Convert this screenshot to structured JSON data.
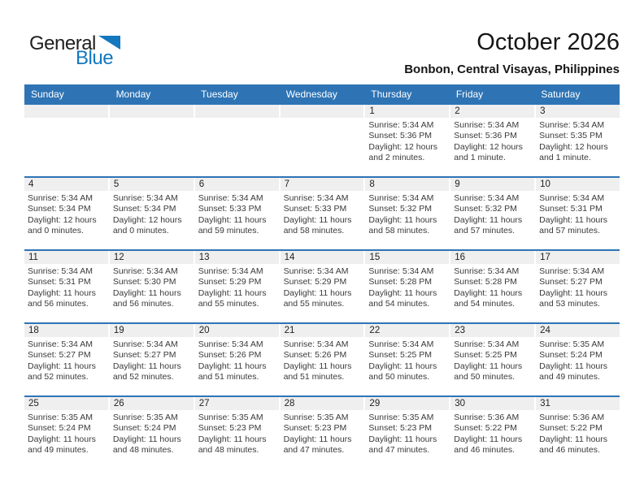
{
  "logo": {
    "part1": "General",
    "part2": "Blue"
  },
  "title": "October 2026",
  "subtitle": "Bonbon, Central Visayas, Philippines",
  "weekdays": [
    "Sunday",
    "Monday",
    "Tuesday",
    "Wednesday",
    "Thursday",
    "Friday",
    "Saturday"
  ],
  "colors": {
    "header_blue": "#2e74b5",
    "row_line_blue": "#2e74b5",
    "day_strip_gray": "#efefef",
    "logo_blue": "#1378be"
  },
  "weeks": [
    [
      {
        "day": "",
        "lines": []
      },
      {
        "day": "",
        "lines": []
      },
      {
        "day": "",
        "lines": []
      },
      {
        "day": "",
        "lines": []
      },
      {
        "day": "1",
        "lines": [
          "Sunrise: 5:34 AM",
          "Sunset: 5:36 PM",
          "Daylight: 12 hours",
          "and 2 minutes."
        ]
      },
      {
        "day": "2",
        "lines": [
          "Sunrise: 5:34 AM",
          "Sunset: 5:36 PM",
          "Daylight: 12 hours",
          "and 1 minute."
        ]
      },
      {
        "day": "3",
        "lines": [
          "Sunrise: 5:34 AM",
          "Sunset: 5:35 PM",
          "Daylight: 12 hours",
          "and 1 minute."
        ]
      }
    ],
    [
      {
        "day": "4",
        "lines": [
          "Sunrise: 5:34 AM",
          "Sunset: 5:34 PM",
          "Daylight: 12 hours",
          "and 0 minutes."
        ]
      },
      {
        "day": "5",
        "lines": [
          "Sunrise: 5:34 AM",
          "Sunset: 5:34 PM",
          "Daylight: 12 hours",
          "and 0 minutes."
        ]
      },
      {
        "day": "6",
        "lines": [
          "Sunrise: 5:34 AM",
          "Sunset: 5:33 PM",
          "Daylight: 11 hours",
          "and 59 minutes."
        ]
      },
      {
        "day": "7",
        "lines": [
          "Sunrise: 5:34 AM",
          "Sunset: 5:33 PM",
          "Daylight: 11 hours",
          "and 58 minutes."
        ]
      },
      {
        "day": "8",
        "lines": [
          "Sunrise: 5:34 AM",
          "Sunset: 5:32 PM",
          "Daylight: 11 hours",
          "and 58 minutes."
        ]
      },
      {
        "day": "9",
        "lines": [
          "Sunrise: 5:34 AM",
          "Sunset: 5:32 PM",
          "Daylight: 11 hours",
          "and 57 minutes."
        ]
      },
      {
        "day": "10",
        "lines": [
          "Sunrise: 5:34 AM",
          "Sunset: 5:31 PM",
          "Daylight: 11 hours",
          "and 57 minutes."
        ]
      }
    ],
    [
      {
        "day": "11",
        "lines": [
          "Sunrise: 5:34 AM",
          "Sunset: 5:31 PM",
          "Daylight: 11 hours",
          "and 56 minutes."
        ]
      },
      {
        "day": "12",
        "lines": [
          "Sunrise: 5:34 AM",
          "Sunset: 5:30 PM",
          "Daylight: 11 hours",
          "and 56 minutes."
        ]
      },
      {
        "day": "13",
        "lines": [
          "Sunrise: 5:34 AM",
          "Sunset: 5:29 PM",
          "Daylight: 11 hours",
          "and 55 minutes."
        ]
      },
      {
        "day": "14",
        "lines": [
          "Sunrise: 5:34 AM",
          "Sunset: 5:29 PM",
          "Daylight: 11 hours",
          "and 55 minutes."
        ]
      },
      {
        "day": "15",
        "lines": [
          "Sunrise: 5:34 AM",
          "Sunset: 5:28 PM",
          "Daylight: 11 hours",
          "and 54 minutes."
        ]
      },
      {
        "day": "16",
        "lines": [
          "Sunrise: 5:34 AM",
          "Sunset: 5:28 PM",
          "Daylight: 11 hours",
          "and 54 minutes."
        ]
      },
      {
        "day": "17",
        "lines": [
          "Sunrise: 5:34 AM",
          "Sunset: 5:27 PM",
          "Daylight: 11 hours",
          "and 53 minutes."
        ]
      }
    ],
    [
      {
        "day": "18",
        "lines": [
          "Sunrise: 5:34 AM",
          "Sunset: 5:27 PM",
          "Daylight: 11 hours",
          "and 52 minutes."
        ]
      },
      {
        "day": "19",
        "lines": [
          "Sunrise: 5:34 AM",
          "Sunset: 5:27 PM",
          "Daylight: 11 hours",
          "and 52 minutes."
        ]
      },
      {
        "day": "20",
        "lines": [
          "Sunrise: 5:34 AM",
          "Sunset: 5:26 PM",
          "Daylight: 11 hours",
          "and 51 minutes."
        ]
      },
      {
        "day": "21",
        "lines": [
          "Sunrise: 5:34 AM",
          "Sunset: 5:26 PM",
          "Daylight: 11 hours",
          "and 51 minutes."
        ]
      },
      {
        "day": "22",
        "lines": [
          "Sunrise: 5:34 AM",
          "Sunset: 5:25 PM",
          "Daylight: 11 hours",
          "and 50 minutes."
        ]
      },
      {
        "day": "23",
        "lines": [
          "Sunrise: 5:34 AM",
          "Sunset: 5:25 PM",
          "Daylight: 11 hours",
          "and 50 minutes."
        ]
      },
      {
        "day": "24",
        "lines": [
          "Sunrise: 5:35 AM",
          "Sunset: 5:24 PM",
          "Daylight: 11 hours",
          "and 49 minutes."
        ]
      }
    ],
    [
      {
        "day": "25",
        "lines": [
          "Sunrise: 5:35 AM",
          "Sunset: 5:24 PM",
          "Daylight: 11 hours",
          "and 49 minutes."
        ]
      },
      {
        "day": "26",
        "lines": [
          "Sunrise: 5:35 AM",
          "Sunset: 5:24 PM",
          "Daylight: 11 hours",
          "and 48 minutes."
        ]
      },
      {
        "day": "27",
        "lines": [
          "Sunrise: 5:35 AM",
          "Sunset: 5:23 PM",
          "Daylight: 11 hours",
          "and 48 minutes."
        ]
      },
      {
        "day": "28",
        "lines": [
          "Sunrise: 5:35 AM",
          "Sunset: 5:23 PM",
          "Daylight: 11 hours",
          "and 47 minutes."
        ]
      },
      {
        "day": "29",
        "lines": [
          "Sunrise: 5:35 AM",
          "Sunset: 5:23 PM",
          "Daylight: 11 hours",
          "and 47 minutes."
        ]
      },
      {
        "day": "30",
        "lines": [
          "Sunrise: 5:36 AM",
          "Sunset: 5:22 PM",
          "Daylight: 11 hours",
          "and 46 minutes."
        ]
      },
      {
        "day": "31",
        "lines": [
          "Sunrise: 5:36 AM",
          "Sunset: 5:22 PM",
          "Daylight: 11 hours",
          "and 46 minutes."
        ]
      }
    ]
  ]
}
